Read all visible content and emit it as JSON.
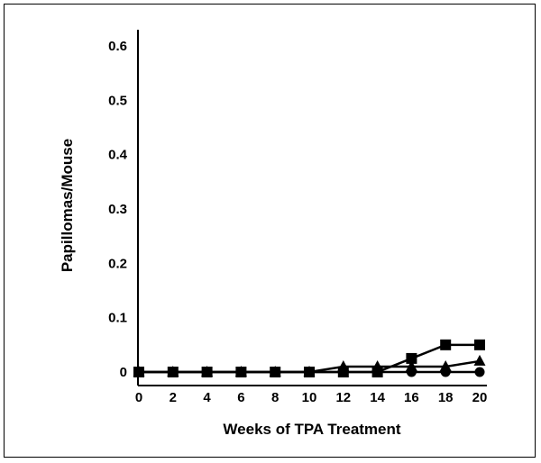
{
  "chart_data": {
    "type": "line",
    "xlabel": "Weeks of TPA Treatment",
    "ylabel": "Papillomas/Mouse",
    "xlim": [
      0,
      20
    ],
    "ylim": [
      0,
      0.6
    ],
    "x_ticks": [
      "0",
      "2",
      "4",
      "6",
      "8",
      "10",
      "12",
      "14",
      "16",
      "18",
      "20"
    ],
    "y_ticks": [
      "0",
      "0.1",
      "0.2",
      "0.3",
      "0.4",
      "0.5",
      "0.6"
    ],
    "grid": false,
    "legend": "none",
    "series": [
      {
        "marker": "square",
        "x": [
          0,
          2,
          4,
          6,
          8,
          10,
          12,
          14,
          16,
          18,
          20
        ],
        "values": [
          0,
          0,
          0,
          0,
          0,
          0,
          0,
          0,
          0.025,
          0.05,
          0.05
        ]
      },
      {
        "marker": "triangle",
        "x": [
          0,
          2,
          4,
          6,
          8,
          10,
          12,
          14,
          16,
          18,
          20
        ],
        "values": [
          0,
          0,
          0,
          0,
          0,
          0,
          0.01,
          0.01,
          0.01,
          0.01,
          0.02
        ]
      },
      {
        "marker": "circle",
        "x": [
          0,
          2,
          4,
          6,
          8,
          10,
          12,
          14,
          16,
          18,
          20
        ],
        "values": [
          0,
          0,
          0,
          0,
          0,
          0,
          0,
          0,
          0,
          0,
          0
        ]
      }
    ]
  }
}
